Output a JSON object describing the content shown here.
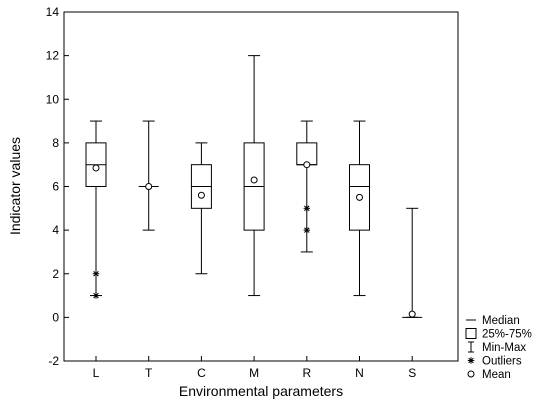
{
  "chart_data": {
    "type": "boxplot",
    "title": "",
    "xlabel": "Environmental parameters",
    "ylabel": "Indicator values",
    "ylim": [
      -2,
      14
    ],
    "yticks": [
      -2,
      0,
      2,
      4,
      6,
      8,
      10,
      12,
      14
    ],
    "grid": false,
    "legend_position": "bottom-right",
    "categories": [
      "L",
      "T",
      "C",
      "M",
      "R",
      "N",
      "S"
    ],
    "series": [
      {
        "category": "L",
        "min": 1,
        "q1": 6,
        "median": 7,
        "q3": 8,
        "max": 9,
        "mean": 6.85,
        "outliers": [
          2,
          1
        ]
      },
      {
        "category": "T",
        "min": 4,
        "q1": 6,
        "median": 6,
        "q3": 6,
        "max": 9,
        "mean": 6.0,
        "outliers": []
      },
      {
        "category": "C",
        "min": 2,
        "q1": 5,
        "median": 6,
        "q3": 7,
        "max": 8,
        "mean": 5.6,
        "outliers": []
      },
      {
        "category": "M",
        "min": 1,
        "q1": 4,
        "median": 6,
        "q3": 8,
        "max": 12,
        "mean": 6.3,
        "outliers": []
      },
      {
        "category": "R",
        "min": 3,
        "q1": 7,
        "median": 7,
        "q3": 8,
        "max": 9,
        "mean": 7.0,
        "outliers": [
          5,
          4
        ]
      },
      {
        "category": "N",
        "min": 1,
        "q1": 4,
        "median": 6,
        "q3": 7,
        "max": 9,
        "mean": 5.5,
        "outliers": []
      },
      {
        "category": "S",
        "min": 0,
        "q1": 0,
        "median": 0,
        "q3": 0,
        "max": 5,
        "mean": 0.15,
        "outliers": []
      }
    ],
    "legend": [
      {
        "symbol": "median",
        "label": "Median"
      },
      {
        "symbol": "box",
        "label": "25%-75%"
      },
      {
        "symbol": "whisker",
        "label": "Min-Max"
      },
      {
        "symbol": "outlier",
        "label": "Outliers"
      },
      {
        "symbol": "mean",
        "label": "Mean"
      }
    ]
  }
}
